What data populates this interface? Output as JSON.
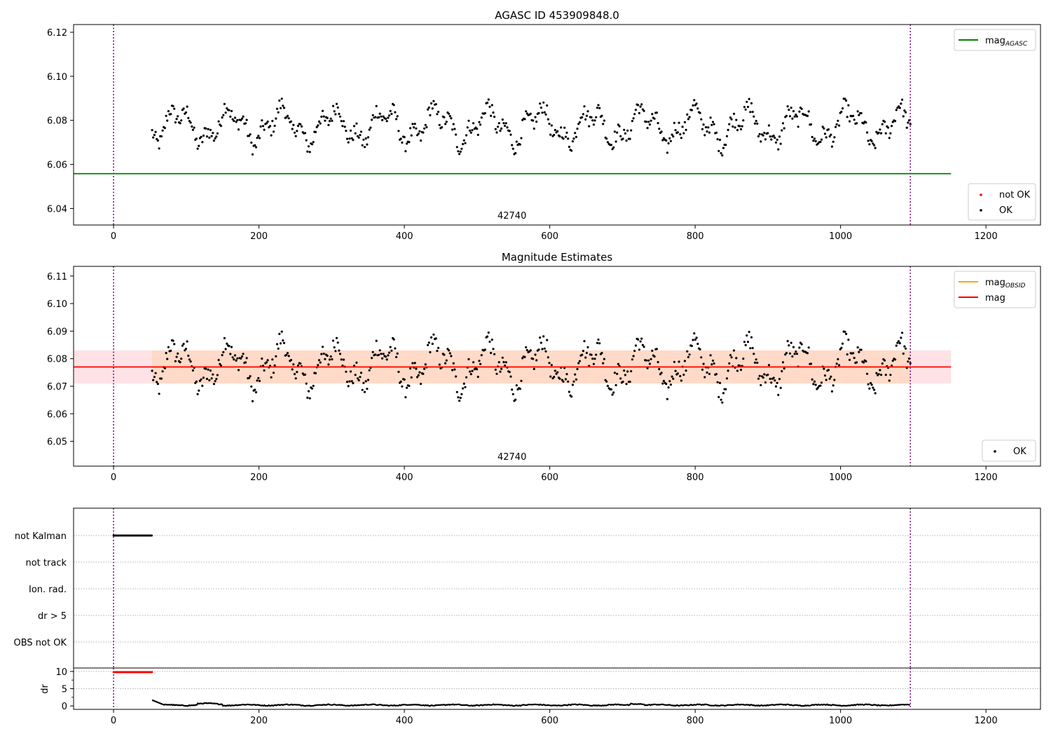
{
  "colors": {
    "ok": "#000000",
    "not_ok": "#ff0000",
    "mag_agasc": "#008000",
    "mag_obsid": "#ffa500",
    "mag": "#ff0000",
    "band_inner": "#ffdac8",
    "band_outer": "#ffe2e6",
    "vline": "#800080",
    "grid": "#b0b0b0"
  },
  "chart_data": [
    {
      "id": "top",
      "type": "scatter",
      "title": "AGASC ID 453909848.0",
      "xlabel": "",
      "ylabel": "",
      "xlim": [
        -55,
        1275
      ],
      "ylim": [
        6.0325,
        6.1235
      ],
      "xticks": [
        0,
        200,
        400,
        600,
        800,
        1000,
        1200
      ],
      "yticks": [
        6.04,
        6.06,
        6.08,
        6.1,
        6.12
      ],
      "ytick_labels": [
        "6.04",
        "6.06",
        "6.08",
        "6.10",
        "6.12"
      ],
      "obsid_label": "42740",
      "obsid_label_x": 548,
      "vlines": [
        0,
        1096
      ],
      "hlines": [
        {
          "series": "mag_agasc",
          "y": 6.0558,
          "xmin": -55,
          "xmax": 1152
        }
      ],
      "series": [
        {
          "name": "not OK",
          "color": "#ff0000",
          "values": []
        },
        {
          "name": "OK",
          "color": "#000000",
          "x_range": [
            53,
            1096
          ],
          "n": 650,
          "mean": 6.0775,
          "amp": 0.0085,
          "noise": 0.0035
        }
      ],
      "legends": [
        {
          "location": "upper right",
          "entries": [
            {
              "kind": "line",
              "label": "mag",
              "sub": "AGASC",
              "color": "#008000"
            }
          ]
        },
        {
          "location": "lower right",
          "entries": [
            {
              "kind": "dot",
              "label": "not OK",
              "color": "#ff0000"
            },
            {
              "kind": "dot",
              "label": "OK",
              "color": "#000000"
            }
          ]
        }
      ]
    },
    {
      "id": "middle",
      "type": "scatter",
      "title": "Magnitude Estimates",
      "xlabel": "",
      "ylabel": "",
      "xlim": [
        -55,
        1275
      ],
      "ylim": [
        6.041,
        6.1135
      ],
      "xticks": [
        0,
        200,
        400,
        600,
        800,
        1000,
        1200
      ],
      "yticks": [
        6.05,
        6.06,
        6.07,
        6.08,
        6.09,
        6.1,
        6.11
      ],
      "ytick_labels": [
        "6.05",
        "6.06",
        "6.07",
        "6.08",
        "6.09",
        "6.10",
        "6.11"
      ],
      "obsid_label": "42740",
      "obsid_label_x": 548,
      "vlines": [
        0,
        1096
      ],
      "band_outer": {
        "x": [
          -55,
          1152
        ],
        "y": [
          6.071,
          6.083
        ]
      },
      "band_inner": {
        "x": [
          53,
          1096
        ],
        "y": [
          6.071,
          6.083
        ]
      },
      "hlines": [
        {
          "series": "mag_obsid",
          "y": 6.077,
          "xmin": 53,
          "xmax": 1096
        },
        {
          "series": "mag",
          "y": 6.077,
          "xmin": -55,
          "xmax": 1152
        }
      ],
      "series": [
        {
          "name": "OK",
          "color": "#000000",
          "x_range": [
            53,
            1096
          ],
          "n": 650,
          "mean": 6.0775,
          "amp": 0.0085,
          "noise": 0.0035
        }
      ],
      "legends": [
        {
          "location": "upper right",
          "entries": [
            {
              "kind": "line",
              "label": "mag",
              "sub": "OBSID",
              "color": "#ffa500"
            },
            {
              "kind": "line",
              "label": "mag",
              "sub": "",
              "color": "#ff0000"
            }
          ]
        },
        {
          "location": "lower right",
          "entries": [
            {
              "kind": "dot",
              "label": "OK",
              "color": "#000000"
            }
          ]
        }
      ]
    },
    {
      "id": "flags",
      "type": "scatter",
      "title": "",
      "xlabel": "",
      "ylabel": "",
      "xlim": [
        -55,
        1275
      ],
      "categories": [
        "not Kalman",
        "not track",
        "Ion. rad.",
        "dr > 5",
        "OBS not OK"
      ],
      "vlines": [
        0,
        1096
      ],
      "series": [
        {
          "name": "",
          "category": "not Kalman",
          "x_range": [
            0,
            53
          ],
          "color": "#000000"
        }
      ]
    },
    {
      "id": "dr",
      "type": "line",
      "title": "",
      "xlabel": "",
      "ylabel": "dr",
      "xlim": [
        -55,
        1275
      ],
      "ylim": [
        -1,
        11
      ],
      "xticks": [
        0,
        200,
        400,
        600,
        800,
        1000,
        1200
      ],
      "yticks": [
        0,
        5,
        10
      ],
      "ytick_labels": [
        "0",
        "5",
        "10"
      ],
      "vlines": [
        0,
        1096
      ],
      "series": [
        {
          "name": "",
          "color": "#ff0000",
          "segment": "not tracked",
          "x_range": [
            0,
            53
          ],
          "y": 9.8
        },
        {
          "name": "",
          "color": "#000000",
          "segment": "tracked",
          "x_range": [
            53,
            1096
          ],
          "start": 1.7,
          "baseline": 0.25
        }
      ]
    }
  ]
}
